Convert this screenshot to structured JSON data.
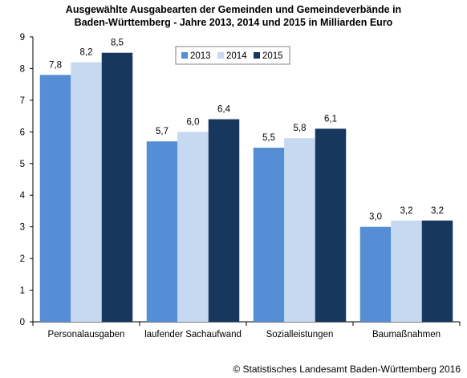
{
  "chart_data": {
    "type": "bar",
    "title_lines": [
      "Ausgewählte Ausgabearten der Gemeinden und Gemeindeverbände in",
      "Baden-Württemberg - Jahre 2013, 2014 und 2015 in Milliarden Euro"
    ],
    "categories": [
      "Personalausgaben",
      "laufender Sachaufwand",
      "Sozialleistungen",
      "Baumaßnahmen"
    ],
    "series": [
      {
        "name": "2013",
        "color": "#558ed5",
        "values": [
          7.8,
          5.7,
          5.5,
          3.0
        ],
        "labels": [
          "7,8",
          "5,7",
          "5,5",
          "3,0"
        ]
      },
      {
        "name": "2014",
        "color": "#c6d9f1",
        "values": [
          8.2,
          6.0,
          5.8,
          3.2
        ],
        "labels": [
          "8,2",
          "6,0",
          "5,8",
          "3,2"
        ]
      },
      {
        "name": "2015",
        "color": "#17375e",
        "values": [
          8.5,
          6.4,
          6.1,
          3.2
        ],
        "labels": [
          "8,5",
          "6,4",
          "6,1",
          "3,2"
        ]
      }
    ],
    "ylim": [
      0,
      9
    ],
    "yticks": [
      0,
      1,
      2,
      3,
      4,
      5,
      6,
      7,
      8,
      9
    ],
    "grid": false,
    "legend": "top-center",
    "xlabel": "",
    "ylabel": ""
  },
  "source": "© Statistisches Landesamt Baden-Württemberg 2016"
}
